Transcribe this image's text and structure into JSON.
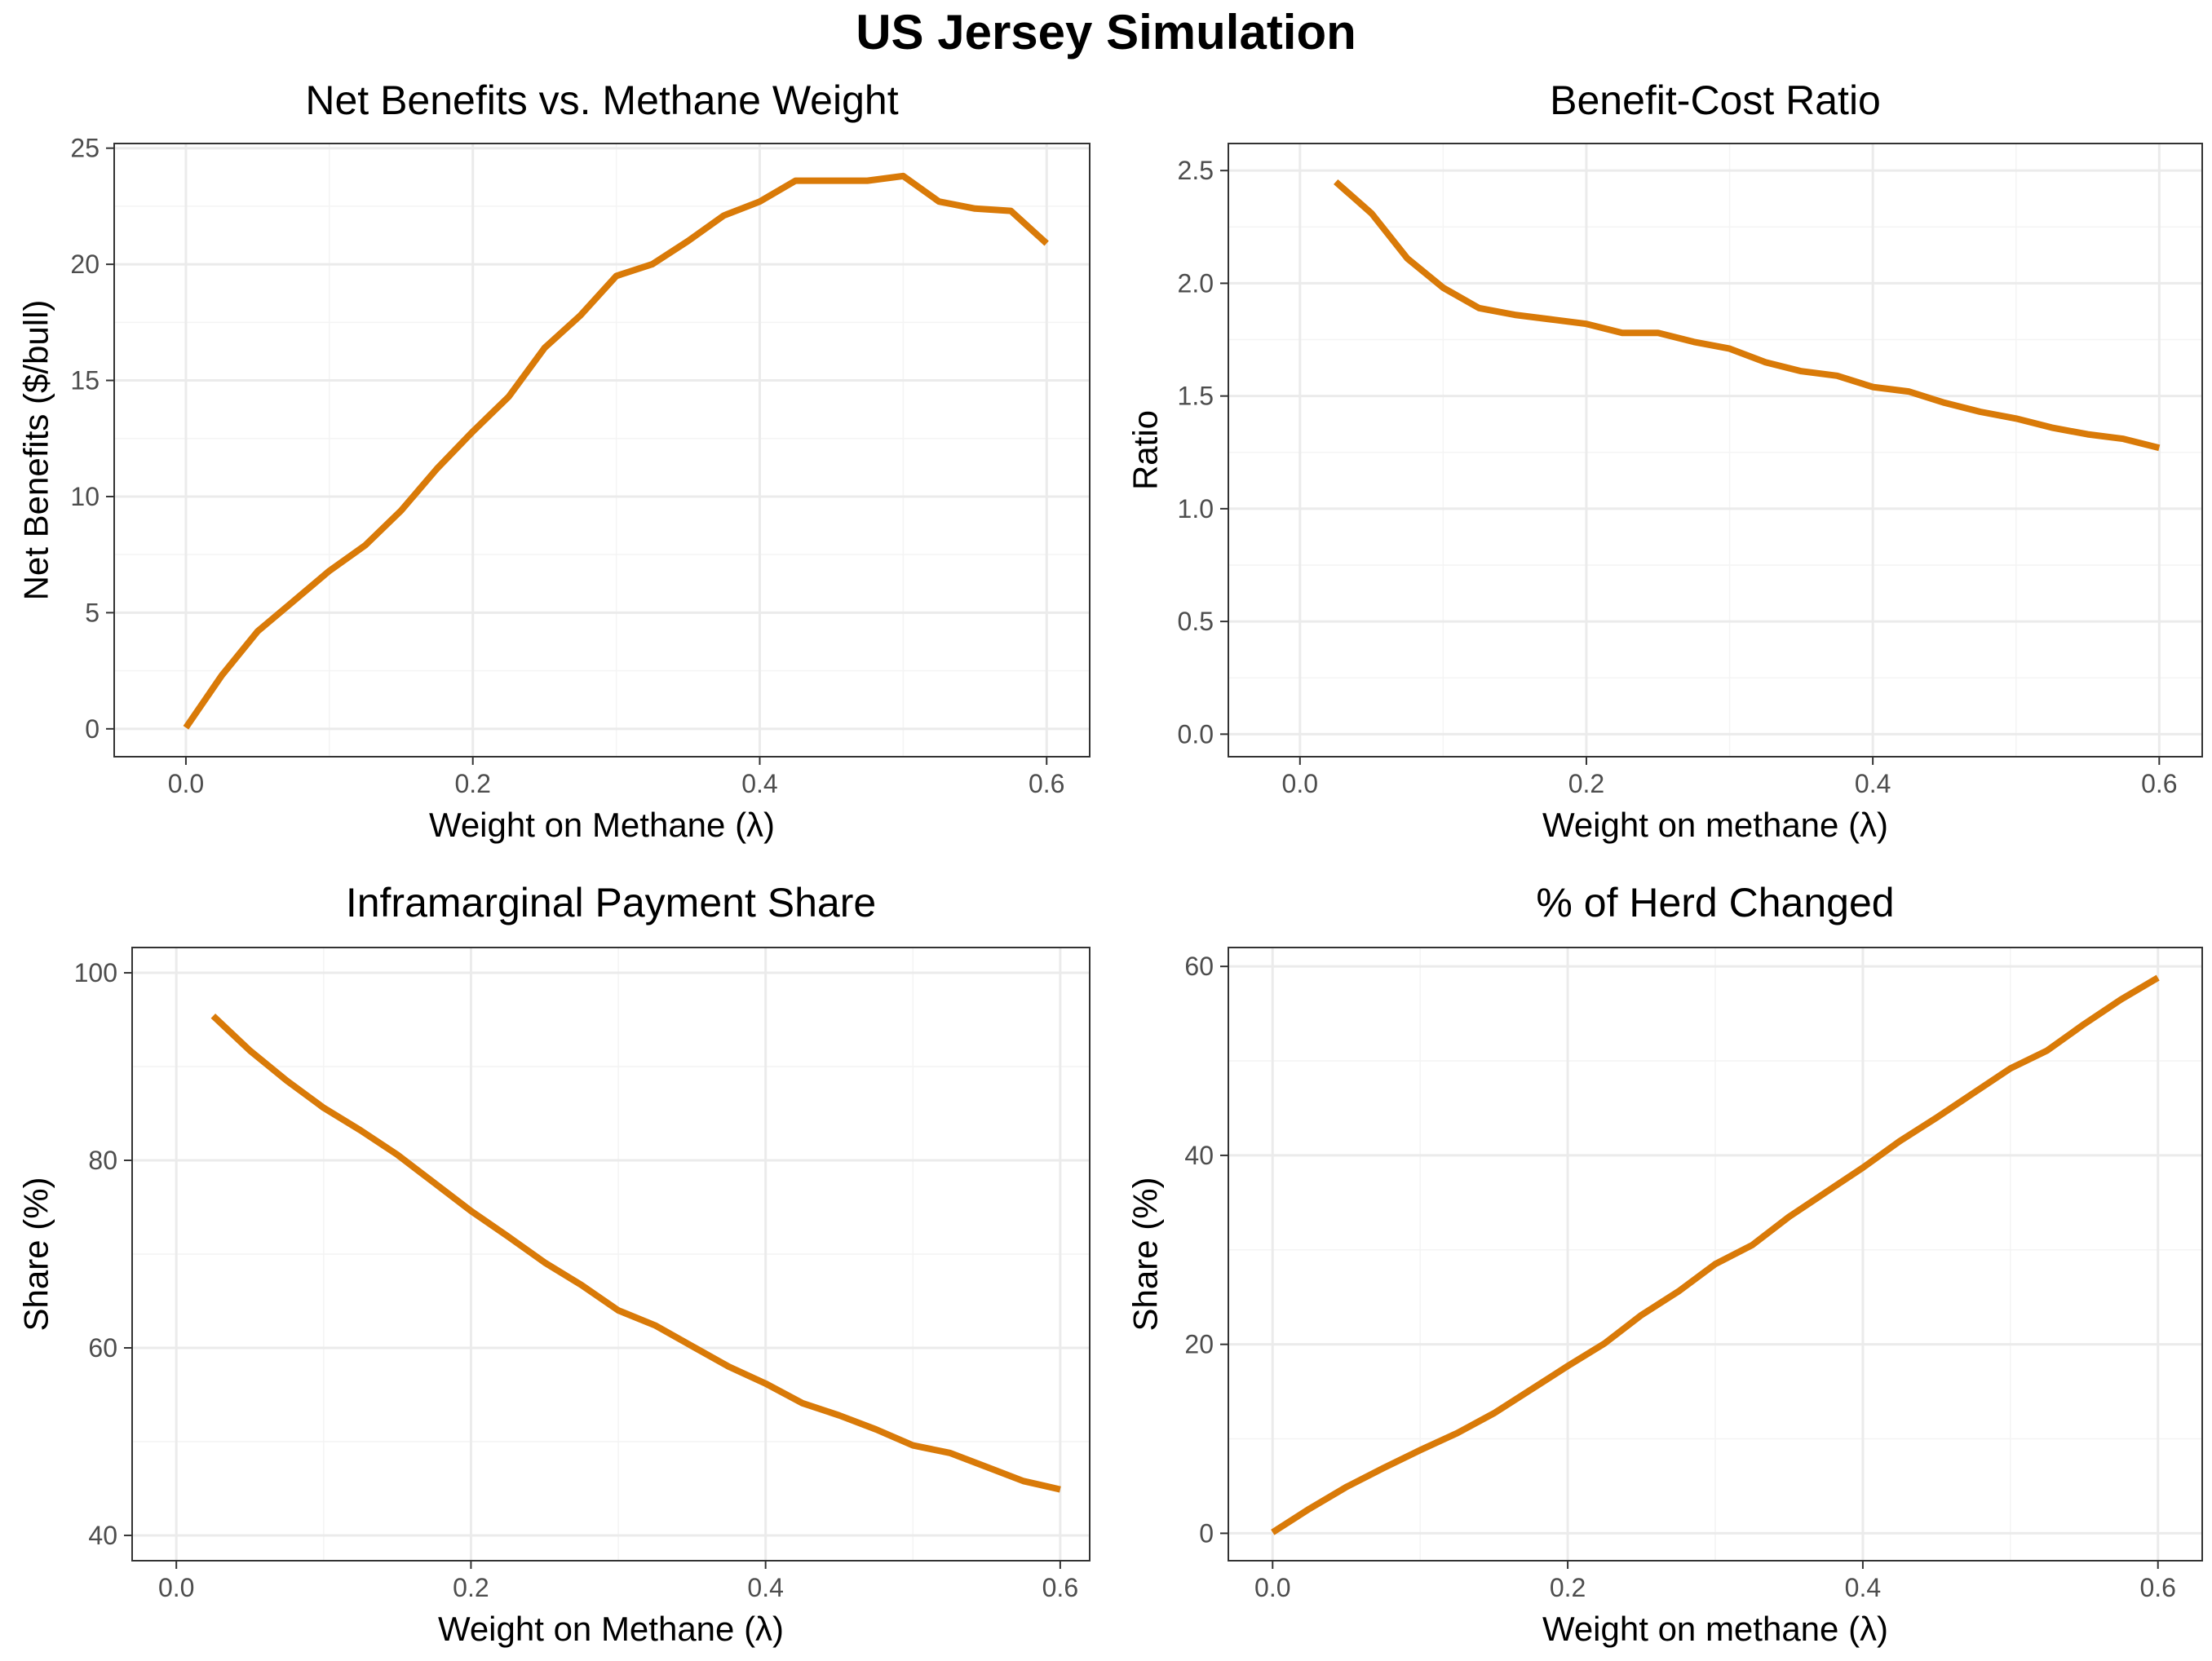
{
  "title": "US Jersey Simulation",
  "line_color": "#D97A08",
  "chart_data": [
    {
      "type": "line",
      "title": "Net Benefits vs. Methane Weight",
      "xlabel": "Weight on Methane (λ)",
      "ylabel": "Net Benefits ($/bull)",
      "xlim": [
        -0.05,
        0.63
      ],
      "ylim": [
        -1.2,
        25.2
      ],
      "xticks": [
        0.0,
        0.2,
        0.4,
        0.6
      ],
      "xtick_labels": [
        "0.0",
        "0.2",
        "0.4",
        "0.6"
      ],
      "yticks": [
        0,
        5,
        10,
        15,
        20,
        25
      ],
      "ytick_labels": [
        "0",
        "5",
        "10",
        "15",
        "20",
        "25"
      ],
      "grid": true,
      "x": [
        0,
        0.025,
        0.05,
        0.075,
        0.1,
        0.125,
        0.15,
        0.175,
        0.2,
        0.225,
        0.25,
        0.275,
        0.3,
        0.325,
        0.35,
        0.375,
        0.4,
        0.425,
        0.45,
        0.475,
        0.5,
        0.525,
        0.55,
        0.575,
        0.6
      ],
      "y": [
        0.05,
        2.3,
        4.2,
        5.5,
        6.8,
        7.9,
        9.4,
        11.2,
        12.8,
        14.3,
        16.4,
        17.8,
        19.5,
        20.0,
        21.0,
        22.1,
        22.7,
        23.6,
        23.6,
        23.6,
        23.8,
        22.7,
        22.4,
        22.3,
        20.9
      ]
    },
    {
      "type": "line",
      "title": "Benefit-Cost Ratio",
      "xlabel": "Weight on methane (λ)",
      "ylabel": "Ratio",
      "xlim": [
        -0.05,
        0.63
      ],
      "ylim": [
        -0.1,
        2.62
      ],
      "xticks": [
        0.0,
        0.2,
        0.4,
        0.6
      ],
      "xtick_labels": [
        "0.0",
        "0.2",
        "0.4",
        "0.6"
      ],
      "yticks": [
        0.0,
        0.5,
        1.0,
        1.5,
        2.0,
        2.5
      ],
      "ytick_labels": [
        "0.0",
        "0.5",
        "1.0",
        "1.5",
        "2.0",
        "2.5"
      ],
      "grid": true,
      "x": [
        0.025,
        0.05,
        0.075,
        0.1,
        0.125,
        0.15,
        0.175,
        0.2,
        0.225,
        0.25,
        0.275,
        0.3,
        0.325,
        0.35,
        0.375,
        0.4,
        0.425,
        0.45,
        0.475,
        0.5,
        0.525,
        0.55,
        0.575,
        0.6
      ],
      "y": [
        2.45,
        2.31,
        2.11,
        1.98,
        1.89,
        1.86,
        1.84,
        1.82,
        1.78,
        1.78,
        1.74,
        1.71,
        1.65,
        1.61,
        1.59,
        1.54,
        1.52,
        1.47,
        1.43,
        1.4,
        1.36,
        1.33,
        1.31,
        1.27
      ]
    },
    {
      "type": "line",
      "title": "Inframarginal Payment Share",
      "xlabel": "Weight on Methane (λ)",
      "ylabel": "Share (%)",
      "xlim": [
        -0.03,
        0.62
      ],
      "ylim": [
        37.3,
        102.7
      ],
      "xticks": [
        0.0,
        0.2,
        0.4,
        0.6
      ],
      "xtick_labels": [
        "0.0",
        "0.2",
        "0.4",
        "0.6"
      ],
      "yticks": [
        40,
        60,
        80,
        100
      ],
      "ytick_labels": [
        "40",
        "60",
        "80",
        "100"
      ],
      "grid": true,
      "x": [
        0.025,
        0.05,
        0.075,
        0.1,
        0.125,
        0.15,
        0.175,
        0.2,
        0.225,
        0.25,
        0.275,
        0.3,
        0.325,
        0.35,
        0.375,
        0.4,
        0.425,
        0.45,
        0.475,
        0.5,
        0.525,
        0.55,
        0.575,
        0.6
      ],
      "y": [
        95.4,
        91.7,
        88.5,
        85.6,
        83.2,
        80.6,
        77.6,
        74.6,
        71.9,
        69.1,
        66.7,
        64.0,
        62.4,
        60.2,
        58.0,
        56.2,
        54.1,
        52.8,
        51.3,
        49.6,
        48.8,
        47.3,
        45.8,
        44.9
      ]
    },
    {
      "type": "line",
      "title": "% of Herd Changed",
      "xlabel": "Weight on methane (λ)",
      "ylabel": "Share (%)",
      "xlim": [
        -0.03,
        0.63
      ],
      "ylim": [
        -2.9,
        62.0
      ],
      "xticks": [
        0.0,
        0.2,
        0.4,
        0.6
      ],
      "xtick_labels": [
        "0.0",
        "0.2",
        "0.4",
        "0.6"
      ],
      "yticks": [
        0,
        20,
        40,
        60
      ],
      "ytick_labels": [
        "0",
        "20",
        "40",
        "60"
      ],
      "grid": true,
      "x": [
        0,
        0.025,
        0.05,
        0.075,
        0.1,
        0.125,
        0.15,
        0.175,
        0.2,
        0.225,
        0.25,
        0.275,
        0.3,
        0.325,
        0.35,
        0.375,
        0.4,
        0.425,
        0.45,
        0.475,
        0.5,
        0.525,
        0.55,
        0.575,
        0.6
      ],
      "y": [
        0.1,
        2.6,
        4.9,
        6.9,
        8.8,
        10.6,
        12.7,
        15.2,
        17.7,
        20.1,
        23.1,
        25.6,
        28.5,
        30.5,
        33.5,
        36.1,
        38.7,
        41.5,
        44.0,
        46.6,
        49.2,
        51.1,
        53.9,
        56.5,
        58.8
      ]
    }
  ]
}
